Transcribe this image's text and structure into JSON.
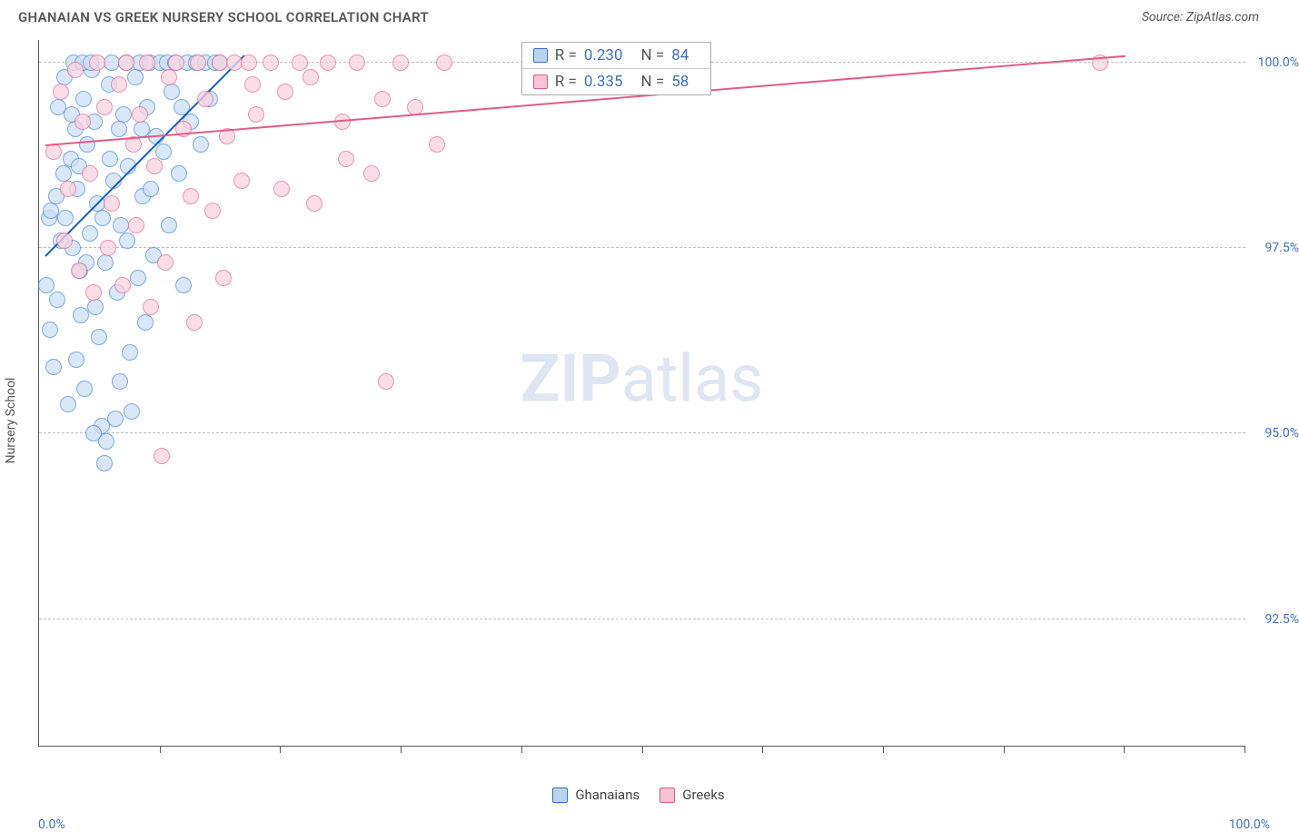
{
  "header": {
    "title": "GHANAIAN VS GREEK NURSERY SCHOOL CORRELATION CHART",
    "source": "Source: ZipAtlas.com"
  },
  "chart": {
    "type": "scatter",
    "ylabel": "Nursery School",
    "watermark_bold": "ZIP",
    "watermark_rest": "atlas",
    "background_color": "#ffffff",
    "grid_color": "#bfbfbf",
    "axis_color": "#555555",
    "tick_label_color": "#3d6fc3",
    "xlim": [
      0,
      100
    ],
    "ylim": [
      90.8,
      100.3
    ],
    "y_gridlines": [
      92.5,
      95.0,
      97.5,
      100.0
    ],
    "y_tick_labels": [
      "92.5%",
      "95.0%",
      "97.5%",
      "100.0%"
    ],
    "x_ticks": [
      10,
      20,
      30,
      40,
      50,
      60,
      70,
      80,
      90,
      100
    ],
    "x_origin_label": "0.0%",
    "x_max_label": "100.0%",
    "marker_radius": 9,
    "marker_stroke_width": 1.5,
    "series": [
      {
        "name": "Ghanaians",
        "legend_label": "Ghanaians",
        "fill": "#cde0f5",
        "stroke": "#4f8fd6",
        "swatch_fill": "#b8d4f0",
        "swatch_stroke": "#3d6fc3",
        "trend": {
          "x1": 0.5,
          "y1": 97.4,
          "x2": 17,
          "y2": 100.1,
          "color": "#1560bd",
          "width": 2
        },
        "stats": {
          "R": "0.230",
          "N": "84"
        },
        "points": [
          [
            0.8,
            97.9
          ],
          [
            1.0,
            98.0
          ],
          [
            1.4,
            98.2
          ],
          [
            1.8,
            97.6
          ],
          [
            2.0,
            98.5
          ],
          [
            2.2,
            97.9
          ],
          [
            2.6,
            98.7
          ],
          [
            2.8,
            97.5
          ],
          [
            3.0,
            99.1
          ],
          [
            3.2,
            98.3
          ],
          [
            3.4,
            97.2
          ],
          [
            3.5,
            96.6
          ],
          [
            3.7,
            99.5
          ],
          [
            4.0,
            98.9
          ],
          [
            4.2,
            97.7
          ],
          [
            4.4,
            99.9
          ],
          [
            4.6,
            99.2
          ],
          [
            4.8,
            98.1
          ],
          [
            5.0,
            96.3
          ],
          [
            5.2,
            95.1
          ],
          [
            5.4,
            94.6
          ],
          [
            5.5,
            97.3
          ],
          [
            5.8,
            99.7
          ],
          [
            6.0,
            100.0
          ],
          [
            6.2,
            98.4
          ],
          [
            6.5,
            96.9
          ],
          [
            6.7,
            95.7
          ],
          [
            6.8,
            97.8
          ],
          [
            7.0,
            99.3
          ],
          [
            7.2,
            100.0
          ],
          [
            7.4,
            98.6
          ],
          [
            7.5,
            96.1
          ],
          [
            7.7,
            95.3
          ],
          [
            8.0,
            99.8
          ],
          [
            8.2,
            97.1
          ],
          [
            8.4,
            100.0
          ],
          [
            8.6,
            98.2
          ],
          [
            8.8,
            96.5
          ],
          [
            9.0,
            99.4
          ],
          [
            9.2,
            100.0
          ],
          [
            9.5,
            97.4
          ],
          [
            9.7,
            99.0
          ],
          [
            10.0,
            100.0
          ],
          [
            10.3,
            98.8
          ],
          [
            10.6,
            100.0
          ],
          [
            11.0,
            99.6
          ],
          [
            11.3,
            100.0
          ],
          [
            11.6,
            98.5
          ],
          [
            12.0,
            97.0
          ],
          [
            12.3,
            100.0
          ],
          [
            12.6,
            99.2
          ],
          [
            13.0,
            100.0
          ],
          [
            13.4,
            98.9
          ],
          [
            13.8,
            100.0
          ],
          [
            14.2,
            99.5
          ],
          [
            14.6,
            100.0
          ],
          [
            15.0,
            100.0
          ],
          [
            1.6,
            99.4
          ],
          [
            2.1,
            99.8
          ],
          [
            2.9,
            100.0
          ],
          [
            3.6,
            100.0
          ],
          [
            4.3,
            100.0
          ],
          [
            0.6,
            97.0
          ],
          [
            0.9,
            96.4
          ],
          [
            1.2,
            95.9
          ],
          [
            1.5,
            96.8
          ],
          [
            2.4,
            95.4
          ],
          [
            3.1,
            96.0
          ],
          [
            3.8,
            95.6
          ],
          [
            4.5,
            95.0
          ],
          [
            5.6,
            94.9
          ],
          [
            6.3,
            95.2
          ],
          [
            2.7,
            99.3
          ],
          [
            3.3,
            98.6
          ],
          [
            3.9,
            97.3
          ],
          [
            4.7,
            96.7
          ],
          [
            5.3,
            97.9
          ],
          [
            5.9,
            98.7
          ],
          [
            6.6,
            99.1
          ],
          [
            7.3,
            97.6
          ],
          [
            8.5,
            99.1
          ],
          [
            9.3,
            98.3
          ],
          [
            10.8,
            97.8
          ],
          [
            11.8,
            99.4
          ]
        ]
      },
      {
        "name": "Greeks",
        "legend_label": "Greeks",
        "fill": "#f9d4df",
        "stroke": "#e86f9a",
        "swatch_fill": "#f6c3d4",
        "swatch_stroke": "#e15a8a",
        "trend": {
          "x1": 0.5,
          "y1": 98.9,
          "x2": 90,
          "y2": 100.1,
          "color": "#e15a8a",
          "width": 2
        },
        "stats": {
          "R": "0.335",
          "N": "58"
        },
        "points": [
          [
            1.2,
            98.8
          ],
          [
            1.8,
            99.6
          ],
          [
            2.4,
            98.3
          ],
          [
            3.0,
            99.9
          ],
          [
            3.6,
            99.2
          ],
          [
            4.2,
            98.5
          ],
          [
            4.8,
            100.0
          ],
          [
            5.4,
            99.4
          ],
          [
            6.0,
            98.1
          ],
          [
            6.6,
            99.7
          ],
          [
            7.2,
            100.0
          ],
          [
            7.8,
            98.9
          ],
          [
            8.4,
            99.3
          ],
          [
            9.0,
            100.0
          ],
          [
            9.6,
            98.6
          ],
          [
            10.2,
            94.7
          ],
          [
            10.8,
            99.8
          ],
          [
            11.4,
            100.0
          ],
          [
            12.0,
            99.1
          ],
          [
            12.6,
            98.2
          ],
          [
            13.2,
            100.0
          ],
          [
            13.8,
            99.5
          ],
          [
            14.4,
            98.0
          ],
          [
            15.0,
            100.0
          ],
          [
            15.6,
            99.0
          ],
          [
            16.2,
            100.0
          ],
          [
            16.8,
            98.4
          ],
          [
            17.4,
            100.0
          ],
          [
            18.0,
            99.3
          ],
          [
            19.2,
            100.0
          ],
          [
            20.4,
            99.6
          ],
          [
            21.6,
            100.0
          ],
          [
            22.8,
            98.1
          ],
          [
            24.0,
            100.0
          ],
          [
            25.2,
            99.2
          ],
          [
            26.4,
            100.0
          ],
          [
            27.6,
            98.5
          ],
          [
            28.8,
            95.7
          ],
          [
            30.0,
            100.0
          ],
          [
            31.2,
            99.4
          ],
          [
            33.6,
            100.0
          ],
          [
            2.1,
            97.6
          ],
          [
            3.3,
            97.2
          ],
          [
            4.5,
            96.9
          ],
          [
            5.7,
            97.5
          ],
          [
            6.9,
            97.0
          ],
          [
            8.1,
            97.8
          ],
          [
            9.3,
            96.7
          ],
          [
            10.5,
            97.3
          ],
          [
            12.9,
            96.5
          ],
          [
            15.3,
            97.1
          ],
          [
            17.7,
            99.7
          ],
          [
            20.1,
            98.3
          ],
          [
            22.5,
            99.8
          ],
          [
            25.5,
            98.7
          ],
          [
            28.5,
            99.5
          ],
          [
            88.0,
            100.0
          ],
          [
            33.0,
            98.9
          ]
        ]
      }
    ]
  },
  "legend": {
    "series1": "Ghanaians",
    "series2": "Greeks"
  }
}
